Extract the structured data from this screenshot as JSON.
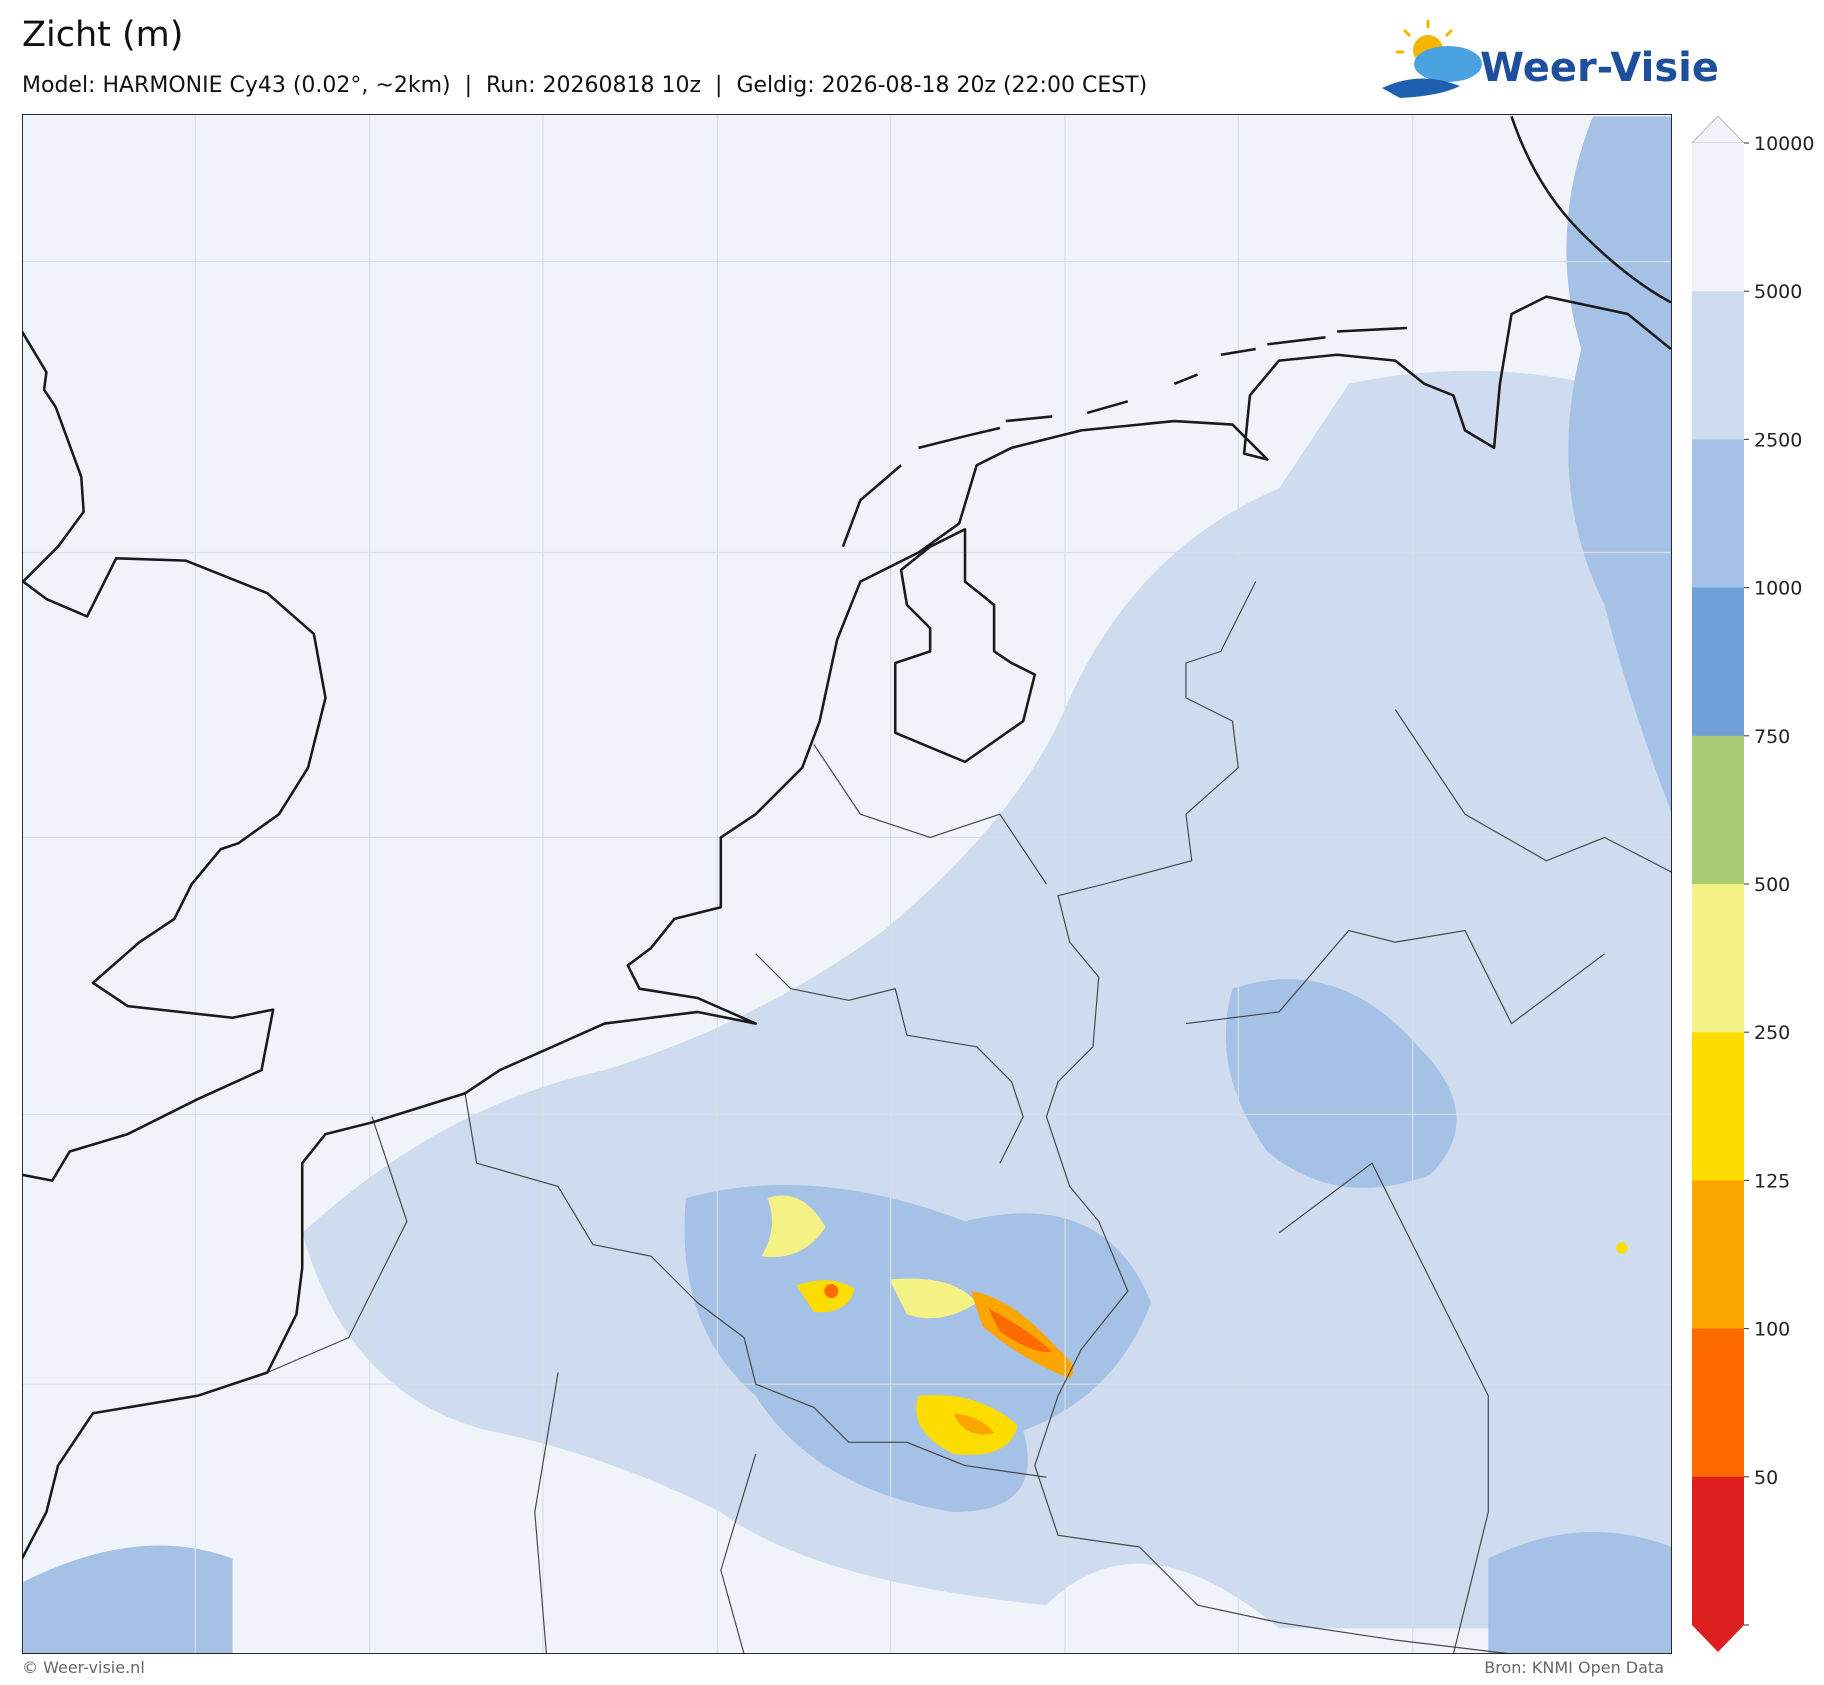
{
  "header": {
    "title": "Zicht (m)",
    "subtitle": "Model: HARMONIE Cy43 (0.02°, ~2km)  |  Run: 20260818 10z  |  Geldig: 2026-08-18 20z (22:00 CEST)"
  },
  "logo": {
    "text": "Weer-Visie"
  },
  "legend": {
    "levels": [
      10000,
      5000,
      2500,
      1000,
      750,
      500,
      250,
      125,
      100,
      50
    ],
    "colors": [
      "#f0f4fa",
      "#cfdcef",
      "#a5c2e6",
      "#6fa0d8",
      "#a7cc74",
      "#f5f285",
      "#fddd00",
      "#fba500",
      "#fd6a00",
      "#dd1f1f"
    ]
  },
  "footer": {
    "left": "© Weer-visie.nl",
    "right": "Bron: KNMI Open Data"
  }
}
